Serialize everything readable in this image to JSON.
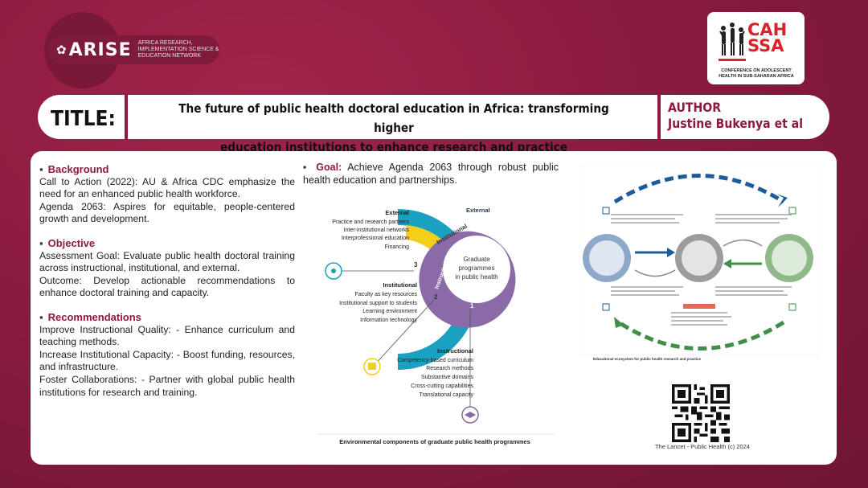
{
  "header": {
    "arise_logo": "ARISE",
    "arise_subtitle": "AFRICA RESEARCH, IMPLEMENTATION SCIENCE & EDUCATION NETWORK",
    "cah_logo_line1": "CAH",
    "cah_logo_line2": "SSA",
    "cah_subtitle": "CONFERENCE ON ADOLESCENT HEALTH IN SUB-SAHARAN AFRICA"
  },
  "title": {
    "label": "TITLE:",
    "line1": "The future of public health doctoral education in Africa:  transforming higher",
    "line2": "education institutions to enhance research and practice"
  },
  "author": {
    "label": "AUTHOR",
    "name": "Justine Bukenya et al"
  },
  "sections": {
    "background": {
      "heading": "Background",
      "p1": "Call to Action (2022): AU & Africa CDC emphasize the need for an enhanced public health workforce.",
      "p2": "Agenda 2063: Aspires for equitable, people-centered growth and development."
    },
    "objective": {
      "heading": "Objective",
      "p1": "Assessment Goal: Evaluate public health doctoral training across instructional, institutional, and external.",
      "p2": "Outcome: Develop actionable recommendations to enhance doctoral training and capacity."
    },
    "recommendations": {
      "heading": "Recommendations",
      "p1": "Improve Instructional Quality: - Enhance curriculum and teaching methods.",
      "p2": "Increase Institutional Capacity: - Boost funding, resources, and infrastructure.",
      "p3": "Foster Collaborations: - Partner with global public health institutions for research and training."
    },
    "goal": {
      "heading": "Goal:",
      "text": "Achieve Agenda 2063 through robust public health education and partnerships."
    }
  },
  "figure1": {
    "center": [
      "Graduate",
      "programmes",
      "in public health"
    ],
    "ring_external": "External",
    "ring_institutional": "Institutional",
    "ring_instructional": "Instructional",
    "num1": "1",
    "num2": "2",
    "num3": "3",
    "external_heading": "External",
    "external_items": [
      "Practice and research partners",
      "Inter-institutional networks",
      "Interprofessional education",
      "Financing"
    ],
    "institutional_heading": "Institutional",
    "institutional_items": [
      "Faculty as key resources",
      "Institutional support to students",
      "Learning environment",
      "Information technology"
    ],
    "instructional_heading": "Instructional",
    "instructional_items": [
      "Competency-based curriculum",
      "Research methods",
      "Substantive domains",
      "Cross-cutting capabilities",
      "Translational capacity"
    ],
    "caption": "Environmental components of graduate public health programmes",
    "colors": {
      "external": "#1aa0c0",
      "institutional": "#f2cf1a",
      "instructional": "#8b6aa8"
    }
  },
  "figure2": {
    "caption": "Educational ecosystem for public health research and practice",
    "colors": {
      "left": "#8ea8c9",
      "middle": "#9c9c9c",
      "right": "#8fb989",
      "top_arrow": "#1d5b9a",
      "bottom_arrow": "#3f8f4a",
      "label": "#e06a5a"
    }
  },
  "reference": {
    "text": "The Lancet - Public Health (c) 2024"
  }
}
